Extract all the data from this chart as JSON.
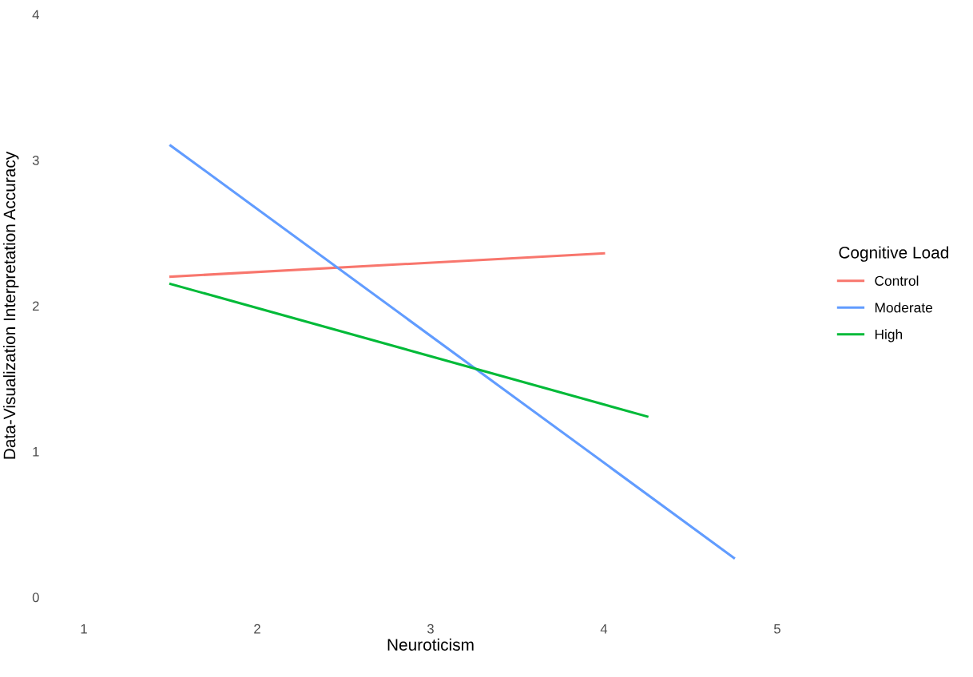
{
  "chart_data": {
    "type": "line",
    "xlabel": "Neuroticism",
    "ylabel": "Data-Visualization Interpretation Accuracy",
    "legend_title": "Cognitive Load",
    "xlim": [
      1,
      5
    ],
    "xticks": [
      1,
      2,
      3,
      4,
      5
    ],
    "ylim": [
      0,
      4
    ],
    "yticks": [
      0,
      1,
      2,
      3,
      4
    ],
    "grid": false,
    "legend": "right",
    "line_style": "solid",
    "series": [
      {
        "name": "Control",
        "color": "#f8766d",
        "x": [
          1.5,
          4.0
        ],
        "values": [
          2.2,
          2.36
        ]
      },
      {
        "name": "Moderate",
        "color": "#619cff",
        "x": [
          1.5,
          4.75
        ],
        "values": [
          3.1,
          0.27
        ]
      },
      {
        "name": "High",
        "color": "#00ba38",
        "x": [
          1.5,
          4.25
        ],
        "values": [
          2.15,
          1.24
        ]
      }
    ]
  }
}
